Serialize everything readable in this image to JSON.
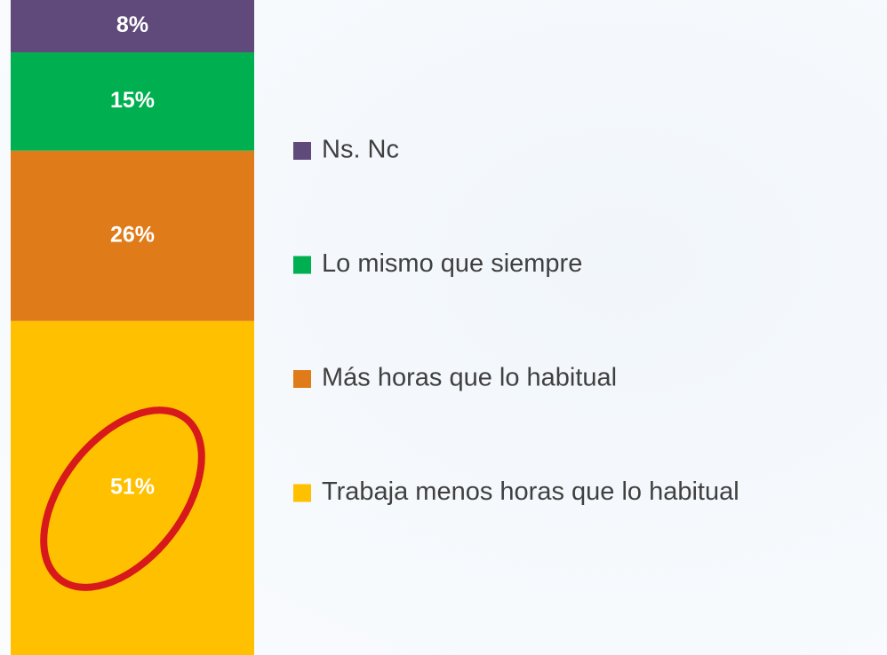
{
  "chart_data": {
    "type": "stacked_bar",
    "categories": [
      null
    ],
    "series": [
      {
        "name": "Trabaja menos horas que lo habitual",
        "color": "#FFC000",
        "values": [
          51
        ],
        "value_labels": [
          "51%"
        ]
      },
      {
        "name": "Más horas que lo habitual",
        "color": "#E07B1A",
        "values": [
          26
        ],
        "value_labels": [
          "26%"
        ]
      },
      {
        "name": "Lo mismo que siempre",
        "color": "#00B050",
        "values": [
          15
        ],
        "value_labels": [
          "15%"
        ]
      },
      {
        "name": "Ns. Nc",
        "color": "#604A7B",
        "values": [
          8
        ],
        "value_labels": [
          "8%"
        ]
      }
    ],
    "ylim": [
      0,
      100
    ],
    "legend": "right"
  }
}
